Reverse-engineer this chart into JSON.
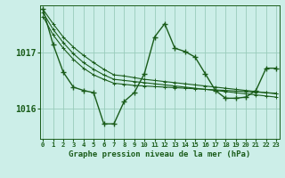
{
  "title": "Graphe pression niveau de la mer (hPa)",
  "bg_color": "#cceee8",
  "grid_color": "#99ccbb",
  "line_color": "#1a5c1a",
  "x_ticks": [
    0,
    1,
    2,
    3,
    4,
    5,
    6,
    7,
    8,
    9,
    10,
    11,
    12,
    13,
    14,
    15,
    16,
    17,
    18,
    19,
    20,
    21,
    22,
    23
  ],
  "y_ticks": [
    1016,
    1017
  ],
  "ylim": [
    1015.45,
    1017.85
  ],
  "xlim": [
    -0.3,
    23.3
  ],
  "series_main": [
    1017.78,
    1017.15,
    1016.65,
    1016.38,
    1016.32,
    1016.28,
    1015.72,
    1015.72,
    1016.12,
    1016.28,
    1016.62,
    1017.28,
    1017.52,
    1017.08,
    1017.02,
    1016.92,
    1016.62,
    1016.32,
    1016.18,
    1016.18,
    1016.2,
    1016.32,
    1016.72,
    1016.72
  ],
  "series_line1": [
    1017.78,
    1017.52,
    1017.28,
    1017.1,
    1016.95,
    1016.82,
    1016.7,
    1016.6,
    1016.58,
    1016.55,
    1016.52,
    1016.5,
    1016.48,
    1016.46,
    1016.44,
    1016.42,
    1016.4,
    1016.38,
    1016.36,
    1016.34,
    1016.32,
    1016.3,
    1016.28,
    1016.26
  ],
  "series_line2": [
    1017.72,
    1017.42,
    1017.18,
    1016.98,
    1016.82,
    1016.7,
    1016.6,
    1016.52,
    1016.5,
    1016.48,
    1016.46,
    1016.44,
    1016.42,
    1016.4,
    1016.38,
    1016.36,
    1016.34,
    1016.32,
    1016.3,
    1016.28,
    1016.26,
    1016.24,
    1016.22,
    1016.2
  ],
  "series_line3": [
    1017.65,
    1017.32,
    1017.08,
    1016.88,
    1016.72,
    1016.6,
    1016.52,
    1016.45,
    1016.43,
    1016.41,
    1016.4,
    1016.39,
    1016.38,
    1016.37,
    1016.36,
    1016.35,
    1016.34,
    1016.33,
    1016.32,
    1016.31,
    1016.3,
    1016.29,
    1016.28,
    1016.27
  ]
}
